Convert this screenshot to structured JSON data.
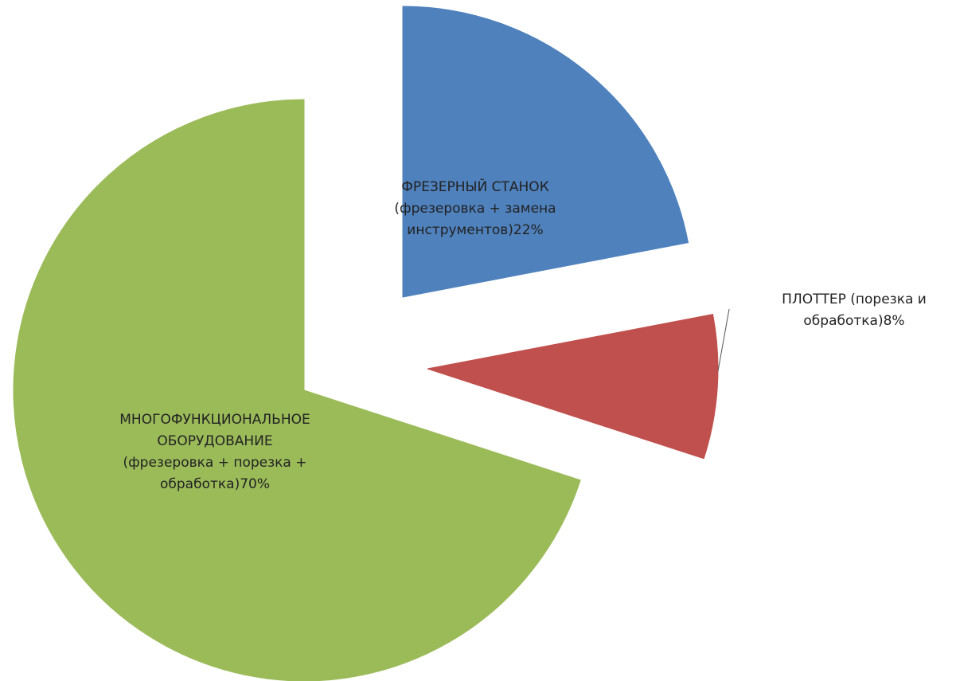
{
  "chart_data": {
    "type": "pie",
    "exploded": true,
    "slices": [
      {
        "label_lines": [
          "ФРЕЗЕРНЫЙ СТАНОК",
          "(фрезеровка + замена",
          "инструментов)22%"
        ],
        "value": 22,
        "color": "#4F81BD"
      },
      {
        "label_lines": [
          "ПЛОТТЕР (порезка и",
          "обработка)8%"
        ],
        "value": 8,
        "color": "#C0504D"
      },
      {
        "label_lines": [
          "МНОГОФУНКЦИОНАЛЬНОЕ",
          "ОБОРУДОВАНИЕ",
          "(фрезеровка + порезка +",
          "обработка)70%"
        ],
        "value": 70,
        "color": "#9BBB59"
      }
    ]
  }
}
